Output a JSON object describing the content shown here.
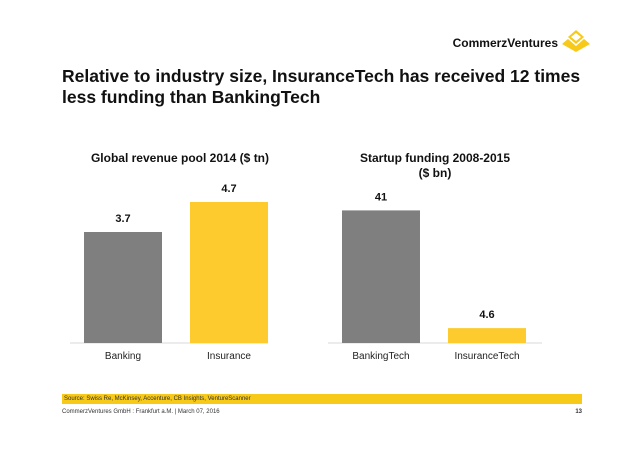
{
  "header": {
    "brand": "CommerzVentures",
    "title": "Relative to industry size, InsuranceTech has received 12 times less funding than BankingTech"
  },
  "colors": {
    "gray": "#7f7f7f",
    "yellow": "#fdcb2e",
    "logo": "#f7c919"
  },
  "chart_data": [
    {
      "type": "bar",
      "title": "Global revenue pool 2014 ($ tn)",
      "categories": [
        "Banking",
        "Insurance"
      ],
      "values": [
        3.7,
        4.7
      ],
      "value_labels": [
        "3.7",
        "4.7"
      ],
      "ylim": [
        0,
        5.5
      ],
      "xlabel": "",
      "ylabel": ""
    },
    {
      "type": "bar",
      "title_lines": [
        "Startup funding 2008-2015",
        "($ bn)"
      ],
      "categories": [
        "BankingTech",
        "InsuranceTech"
      ],
      "values": [
        41,
        4.6
      ],
      "value_labels": [
        "41",
        "4.6"
      ],
      "ylim": [
        0,
        47
      ],
      "xlabel": "",
      "ylabel": ""
    }
  ],
  "footer": {
    "source": "Source: Swiss Re, McKinsey, Accenture, CB Insights, VentureScanner",
    "company": "CommerzVentures GmbH  :  Frankfurt a.M. | March 07, 2016",
    "page": "13"
  }
}
